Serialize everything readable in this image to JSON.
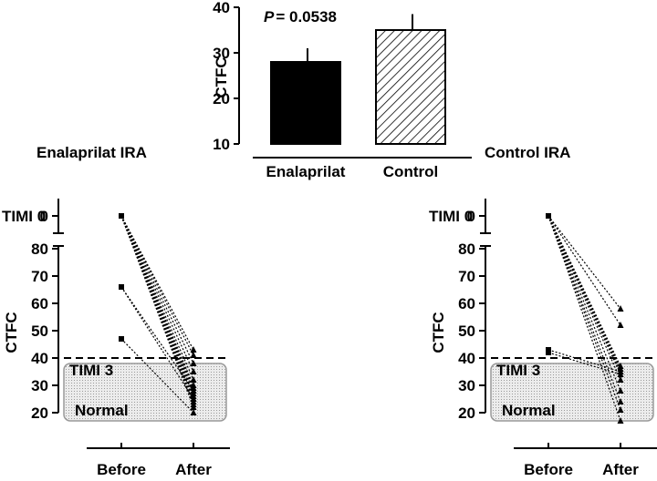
{
  "chart_data": [
    {
      "type": "bar",
      "annotation_prefix": "P",
      "annotation_value": "= 0.0538",
      "ylabel": "CTFC",
      "ylim": [
        10,
        40
      ],
      "yticks": [
        "10",
        "20",
        "30",
        "40"
      ],
      "categories": [
        "Enalaprilat",
        "Control"
      ],
      "values": [
        28,
        35
      ],
      "errors": [
        3,
        3.5
      ],
      "fills": [
        "solid-black",
        "diagonal-hatch"
      ]
    },
    {
      "type": "line",
      "title": "Enalaprilat IRA",
      "ylabel": "CTFC",
      "categories": [
        "Before",
        "After"
      ],
      "yticks": [
        "20",
        "30",
        "40",
        "50",
        "60",
        "70",
        "80"
      ],
      "ylim": [
        15,
        85
      ],
      "timi0_label": "TIMI 0",
      "timi0_tick": "0",
      "timi3_label": "TIMI 3",
      "timi3_value": 40,
      "normal_label": "Normal",
      "normal_range": [
        17,
        38
      ],
      "series": [
        {
          "before": "TIMI0",
          "after": 43
        },
        {
          "before": "TIMI0",
          "after": 41
        },
        {
          "before": "TIMI0",
          "after": 38
        },
        {
          "before": "TIMI0",
          "after": 35
        },
        {
          "before": "TIMI0",
          "after": 32
        },
        {
          "before": "TIMI0",
          "after": 30
        },
        {
          "before": "TIMI0",
          "after": 29
        },
        {
          "before": "TIMI0",
          "after": 28
        },
        {
          "before": "TIMI0",
          "after": 27
        },
        {
          "before": "TIMI0",
          "after": 26
        },
        {
          "before": "TIMI0",
          "after": 25
        },
        {
          "before": "TIMI0",
          "after": 24
        },
        {
          "before": "TIMI0",
          "after": 23
        },
        {
          "before": "TIMI0",
          "after": 22
        },
        {
          "before": 66,
          "after": 28
        },
        {
          "before": 66,
          "after": 25
        },
        {
          "before": 47,
          "after": 20
        }
      ]
    },
    {
      "type": "line",
      "title": "Control IRA",
      "ylabel": "CTFC",
      "categories": [
        "Before",
        "After"
      ],
      "yticks": [
        "20",
        "30",
        "40",
        "50",
        "60",
        "70",
        "80"
      ],
      "ylim": [
        15,
        85
      ],
      "timi0_label": "TIMI 0",
      "timi0_tick": "0",
      "timi3_label": "TIMI 3",
      "timi3_value": 40,
      "normal_label": "Normal",
      "normal_range": [
        17,
        38
      ],
      "series": [
        {
          "before": "TIMI0",
          "after": 58
        },
        {
          "before": "TIMI0",
          "after": 52
        },
        {
          "before": "TIMI0",
          "after": 37
        },
        {
          "before": "TIMI0",
          "after": 36
        },
        {
          "before": "TIMI0",
          "after": 35
        },
        {
          "before": "TIMI0",
          "after": 34
        },
        {
          "before": "TIMI0",
          "after": 32
        },
        {
          "before": "TIMI0",
          "after": 28
        },
        {
          "before": "TIMI0",
          "after": 24
        },
        {
          "before": "TIMI0",
          "after": 21
        },
        {
          "before": "TIMI0",
          "after": 17
        },
        {
          "before": 43,
          "after": 35
        },
        {
          "before": 42,
          "after": 34
        }
      ]
    }
  ]
}
